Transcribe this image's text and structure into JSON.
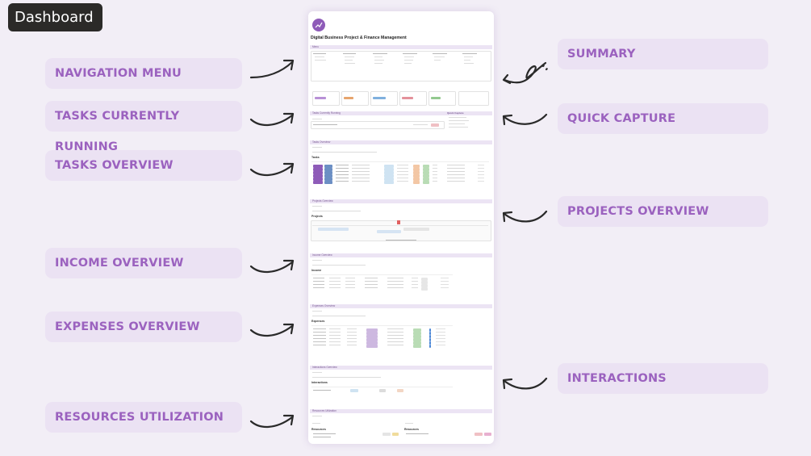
{
  "badge": {
    "title": "Dashboard"
  },
  "annotations": {
    "left": [
      {
        "label": "NAVIGATION MENU"
      },
      {
        "label": "TASKS CURRENTLY RUNNING"
      },
      {
        "label": "TASKS OVERVIEW"
      },
      {
        "label": "INCOME OVERVIEW"
      },
      {
        "label": "EXPENSES OVERVIEW"
      },
      {
        "label": "RESOURCES UTILIZATION"
      }
    ],
    "right": [
      {
        "label": "SUMMARY"
      },
      {
        "label": "QUICK CAPTURE"
      },
      {
        "label": "PROJECTS OVERVIEW"
      },
      {
        "label": "INTERACTIONS"
      }
    ]
  },
  "document": {
    "title": "Digital Business Project & Finance Management",
    "sections": {
      "menu": "Menu",
      "tasks_running": "Tasks Currently Running",
      "quick_capture": "Quick Capture",
      "tasks_overview": "Tasks Overview",
      "projects_overview": "Projects Overview",
      "income_overview": "Income Overview",
      "expenses_overview": "Expenses Overview",
      "interactions_overview": "Interactions Overview",
      "resources_utilization": "Resources Utilization"
    },
    "tables": {
      "tasks": "Tasks",
      "projects": "Projects",
      "income": "Income",
      "expenses": "Expenses",
      "interactions": "Interactions",
      "resources": "Resources"
    }
  },
  "colors": {
    "accent": "#9b62bf",
    "pill_bg": "#ebe2f3",
    "page_bg": "#f2eef6",
    "badge_bg": "#2b2a28",
    "band_bg": "#ece4f4"
  }
}
